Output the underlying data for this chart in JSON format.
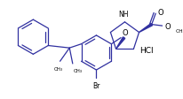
{
  "bg_color": "#ffffff",
  "line_color": "#3030a0",
  "figsize": [
    2.06,
    1.13
  ],
  "dpi": 100,
  "xlim": [
    0,
    206
  ],
  "ylim": [
    0,
    113
  ]
}
